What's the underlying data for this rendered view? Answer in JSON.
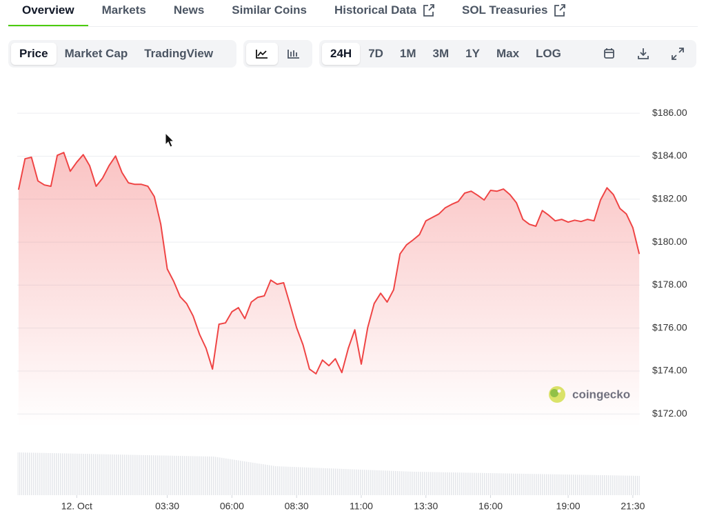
{
  "tabs": [
    {
      "label": "Overview",
      "active": true,
      "external": false
    },
    {
      "label": "Markets",
      "active": false,
      "external": false
    },
    {
      "label": "News",
      "active": false,
      "external": false
    },
    {
      "label": "Similar Coins",
      "active": false,
      "external": false
    },
    {
      "label": "Historical Data",
      "active": false,
      "external": true
    },
    {
      "label": "SOL Treasuries",
      "active": false,
      "external": true
    }
  ],
  "views": [
    {
      "label": "Price",
      "active": true
    },
    {
      "label": "Market Cap",
      "active": false
    },
    {
      "label": "TradingView",
      "active": false
    }
  ],
  "ranges": [
    {
      "label": "24H",
      "active": true
    },
    {
      "label": "7D",
      "active": false
    },
    {
      "label": "1M",
      "active": false
    },
    {
      "label": "3M",
      "active": false
    },
    {
      "label": "1Y",
      "active": false
    },
    {
      "label": "Max",
      "active": false
    },
    {
      "label": "LOG",
      "active": false
    }
  ],
  "watermark": "coingecko",
  "chart_data": {
    "type": "line",
    "color": "#ef4444",
    "area": true,
    "grid": true,
    "x": [
      -2.25,
      -2,
      -1.75,
      -1.5,
      -1.25,
      -1,
      -0.75,
      -0.5,
      -0.25,
      0,
      0.25,
      0.5,
      0.75,
      1,
      1.25,
      1.5,
      1.75,
      2,
      2.25,
      2.5,
      2.75,
      3,
      3.25,
      3.5,
      3.75,
      4,
      4.25,
      4.5,
      4.75,
      5,
      5.25,
      5.5,
      5.75,
      6,
      6.25,
      6.5,
      6.75,
      7,
      7.25,
      7.5,
      7.75,
      8,
      8.25,
      8.5,
      8.75,
      9,
      9.25,
      9.5,
      9.75,
      10,
      10.25,
      10.5,
      10.75,
      11,
      11.25,
      11.5,
      11.75,
      12,
      12.25,
      12.5,
      12.75,
      13,
      13.25,
      13.5,
      13.75,
      14,
      14.25,
      14.5,
      14.75,
      15,
      15.25,
      15.5,
      15.75,
      16,
      16.25,
      16.5,
      16.75,
      17,
      17.25,
      17.5,
      17.75,
      18,
      18.25,
      18.5,
      18.75,
      19,
      19.25,
      19.5,
      19.75,
      20,
      20.25,
      20.5,
      20.75,
      21,
      21.25,
      21.5,
      21.75
    ],
    "values": [
      182.44,
      183.88,
      183.95,
      182.85,
      182.66,
      182.6,
      184.04,
      184.17,
      183.3,
      183.72,
      184.07,
      183.56,
      182.6,
      182.98,
      183.56,
      184.01,
      183.24,
      182.76,
      182.69,
      182.69,
      182.6,
      182.12,
      180.83,
      178.75,
      178.17,
      177.46,
      177.14,
      176.56,
      175.7,
      175.06,
      174.09,
      176.18,
      176.24,
      176.76,
      176.95,
      176.44,
      177.21,
      177.43,
      177.5,
      178.23,
      178.04,
      178.11,
      177.08,
      176.02,
      175.22,
      174.09,
      173.87,
      174.51,
      174.25,
      174.57,
      173.93,
      175.06,
      175.92,
      174.32,
      176.02,
      177.14,
      177.62,
      177.21,
      177.78,
      179.45,
      179.87,
      180.1,
      180.35,
      180.99,
      181.15,
      181.31,
      181.6,
      181.76,
      181.89,
      182.28,
      182.37,
      182.18,
      181.96,
      182.41,
      182.37,
      182.47,
      182.21,
      181.83,
      181.06,
      180.83,
      180.74,
      181.47,
      181.25,
      180.99,
      181.06,
      180.93,
      181.02,
      180.96,
      181.06,
      180.99,
      181.96,
      182.53,
      182.21,
      181.57,
      181.31,
      180.67,
      179.45
    ],
    "xlim": [
      -2.3,
      21.77
    ],
    "xticks": [
      {
        "value": 0,
        "label": "12. Oct"
      },
      {
        "value": 3.5,
        "label": "03:30"
      },
      {
        "value": 6,
        "label": "06:00"
      },
      {
        "value": 8.5,
        "label": "08:30"
      },
      {
        "value": 11,
        "label": "11:00"
      },
      {
        "value": 13.5,
        "label": "13:30"
      },
      {
        "value": 16,
        "label": "16:00"
      },
      {
        "value": 19,
        "label": "19:00"
      },
      {
        "value": 21.5,
        "label": "21:30"
      }
    ],
    "ylim": [
      171.4,
      187
    ],
    "yticks": [
      {
        "value": 186,
        "label": "$186.00"
      },
      {
        "value": 184,
        "label": "$184.00"
      },
      {
        "value": 182,
        "label": "$182.00"
      },
      {
        "value": 180,
        "label": "$180.00"
      },
      {
        "value": 178,
        "label": "$178.00"
      },
      {
        "value": 176,
        "label": "$176.00"
      },
      {
        "value": 174,
        "label": "$174.00"
      },
      {
        "value": 172,
        "label": "$172.00"
      }
    ]
  }
}
